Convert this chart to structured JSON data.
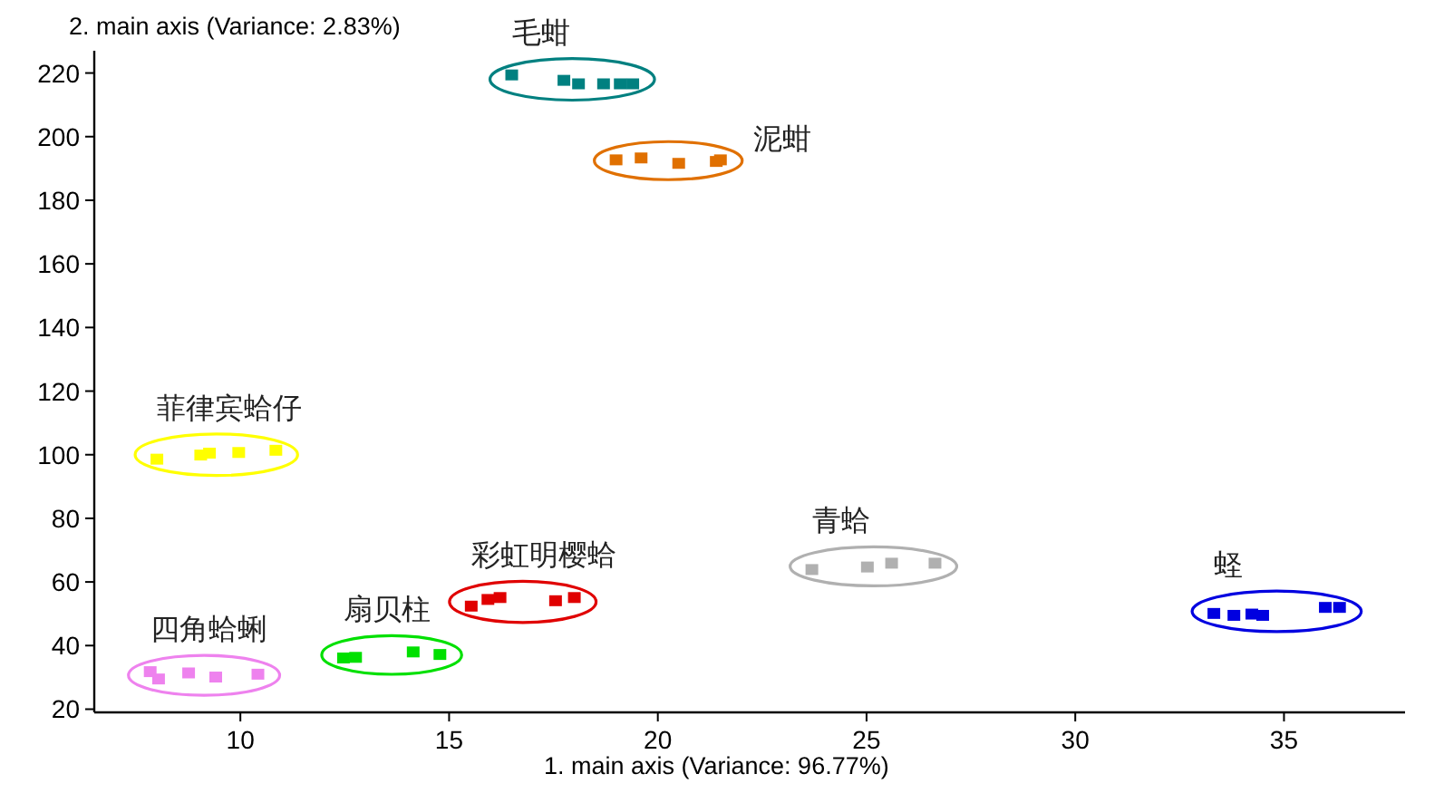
{
  "chart_data": {
    "type": "scatter",
    "xlabel": "1. main axis (Variance: 96.77%)",
    "ylabel": "2. main axis (Variance: 2.83%)",
    "xlim": [
      6.5,
      37.9
    ],
    "ylim": [
      19,
      227
    ],
    "xticks": [
      10,
      15,
      20,
      25,
      30,
      35
    ],
    "yticks": [
      20,
      40,
      60,
      80,
      100,
      120,
      140,
      160,
      180,
      200,
      220
    ],
    "marker": "square",
    "grid": false,
    "legend": false,
    "series": [
      {
        "name": "毛蚶",
        "color": "#008080",
        "x": [
          16.5,
          17.75,
          18.1,
          18.7,
          19.1,
          19.4
        ],
        "values": [
          219.4,
          217.7,
          216.6,
          216.6,
          216.6,
          216.6
        ]
      },
      {
        "name": "泥蚶",
        "color": "#e07000",
        "x": [
          19.0,
          19.6,
          20.5,
          21.4,
          21.5
        ],
        "values": [
          192.7,
          193.3,
          191.6,
          192.2,
          192.7
        ]
      },
      {
        "name": "菲律宾蛤仔",
        "color": "#ffff00",
        "x": [
          8.0,
          9.05,
          9.26,
          9.96,
          10.85
        ],
        "values": [
          98.6,
          99.9,
          100.5,
          100.7,
          101.4
        ]
      },
      {
        "name": "四角蛤蜊",
        "color": "#ee82ee",
        "x": [
          7.84,
          8.04,
          8.76,
          9.41,
          10.42
        ],
        "values": [
          31.8,
          29.5,
          31.4,
          30.1,
          31.0
        ]
      },
      {
        "name": "扇贝柱",
        "color": "#00e000",
        "x": [
          12.47,
          12.76,
          14.14,
          14.78
        ],
        "values": [
          36.1,
          36.3,
          38.0,
          37.2
        ]
      },
      {
        "name": "彩虹明樱蛤",
        "color": "#e00000",
        "x": [
          15.53,
          15.93,
          16.22,
          17.55,
          18.0
        ],
        "values": [
          52.4,
          54.5,
          55.1,
          54.1,
          55.1
        ]
      },
      {
        "name": "青蛤",
        "color": "#b0b0b0",
        "x": [
          23.69,
          25.02,
          25.6,
          26.64
        ],
        "values": [
          63.9,
          64.7,
          65.9,
          65.9
        ]
      },
      {
        "name": "蛏",
        "color": "#0000e0",
        "x": [
          33.32,
          33.8,
          34.23,
          34.49,
          35.99,
          36.33
        ],
        "values": [
          50.1,
          49.5,
          49.9,
          49.5,
          52.0,
          52.0
        ]
      }
    ]
  }
}
